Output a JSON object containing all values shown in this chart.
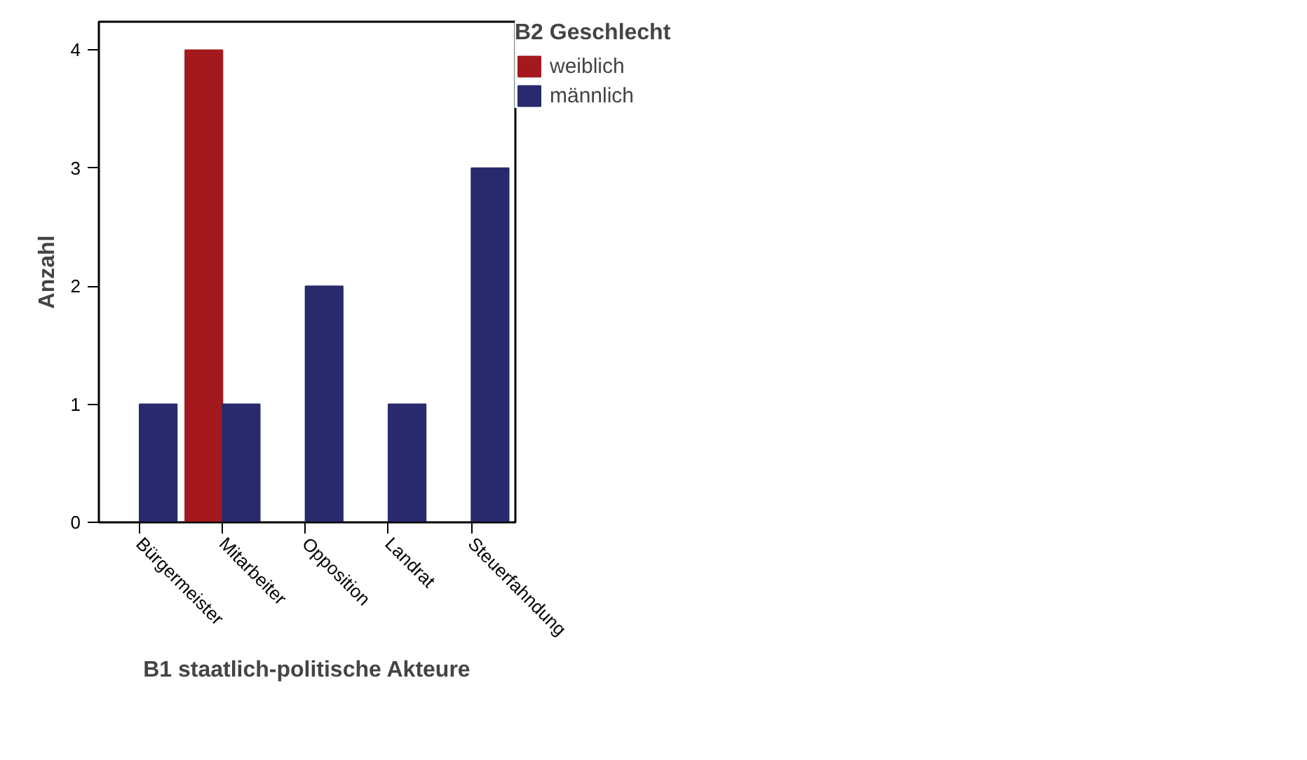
{
  "chart_data": {
    "type": "bar",
    "xlabel": "B1 staatlich-politische Akteure",
    "ylabel": "Anzahl",
    "legend_title": "B2 Geschlecht",
    "categories": [
      "Bürgermeister",
      "Mitarbeiter",
      "Opposition",
      "Landrat",
      "Steuerfahndung"
    ],
    "series": [
      {
        "name": "weiblich",
        "color": "#a3191e",
        "values": [
          null,
          4,
          null,
          null,
          null
        ]
      },
      {
        "name": "männlich",
        "color": "#292a6e",
        "values": [
          1,
          1,
          2,
          1,
          3
        ]
      }
    ],
    "ylim": [
      0,
      4.24
    ],
    "yticks": [
      0,
      1,
      2,
      3,
      4
    ],
    "grid": false,
    "legend": "top right"
  }
}
